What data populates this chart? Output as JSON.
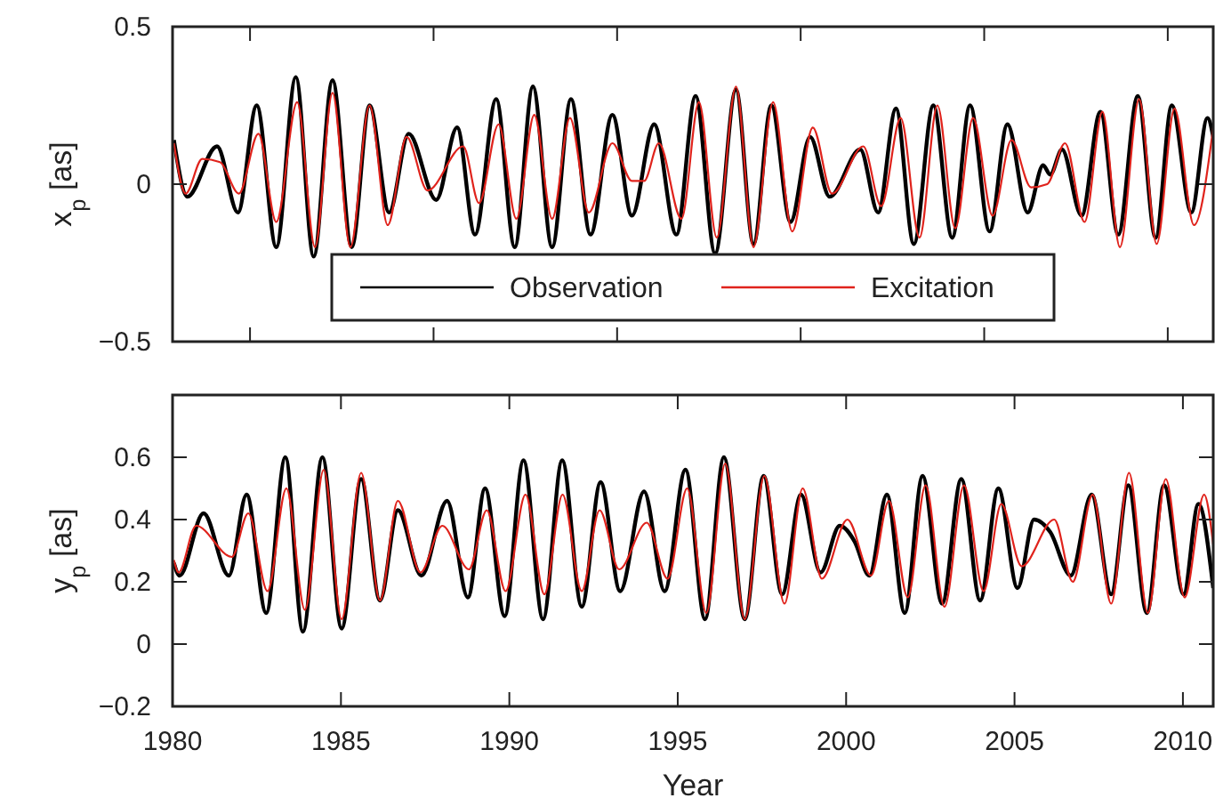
{
  "chart_data": [
    {
      "type": "line",
      "ylabel": "x$_{p}$ [as]",
      "xlim": [
        1980,
        2010.9
      ],
      "ylim": [
        -0.5,
        0.5
      ],
      "xticks": [
        {
          "value": 1982.3,
          "label": null
        },
        {
          "value": 1987.75,
          "label": null
        },
        {
          "value": 1993.2,
          "label": null
        },
        {
          "value": 1998.65,
          "label": null
        },
        {
          "value": 2004.1,
          "label": null
        },
        {
          "value": 2009.55,
          "label": null
        }
      ],
      "yticks": [
        {
          "value": -0.5,
          "label": "−0.5"
        },
        0,
        0.5
      ],
      "tick_labels": "y",
      "legend": "bottom",
      "series": [
        {
          "name": "Observation",
          "color": "#000000",
          "x": [
            1980.04,
            1980.44,
            1981.32,
            1981.94,
            1982.5,
            1983.08,
            1983.66,
            1984.19,
            1984.75,
            1985.32,
            1985.85,
            1986.43,
            1987.01,
            1987.83,
            1988.45,
            1988.98,
            1989.61,
            1990.16,
            1990.7,
            1991.27,
            1991.83,
            1992.41,
            1993.06,
            1993.64,
            1994.3,
            1994.96,
            1995.53,
            1996.11,
            1996.73,
            1997.25,
            1997.78,
            1998.35,
            1998.93,
            1999.51,
            2000.42,
            2000.95,
            2001.48,
            2002.01,
            2002.59,
            2003.15,
            2003.68,
            2004.26,
            2004.79,
            2005.39,
            2005.85,
            2006.06,
            2006.41,
            2006.99,
            2007.55,
            2008.08,
            2008.66,
            2009.19,
            2009.67,
            2010.25,
            2010.73,
            2010.9
          ],
          "values": [
            0.14,
            -0.04,
            0.12,
            -0.09,
            0.25,
            -0.2,
            0.34,
            -0.23,
            0.33,
            -0.2,
            0.25,
            -0.09,
            0.16,
            -0.05,
            0.18,
            -0.16,
            0.27,
            -0.2,
            0.31,
            -0.2,
            0.27,
            -0.16,
            0.22,
            -0.1,
            0.19,
            -0.16,
            0.28,
            -0.22,
            0.3,
            -0.19,
            0.25,
            -0.12,
            0.15,
            -0.04,
            0.11,
            -0.09,
            0.24,
            -0.19,
            0.25,
            -0.17,
            0.25,
            -0.15,
            0.19,
            -0.09,
            0.06,
            0.03,
            0.11,
            -0.1,
            0.23,
            -0.16,
            0.28,
            -0.17,
            0.25,
            -0.09,
            0.21,
            0.15
          ]
        },
        {
          "name": "Excitation",
          "color": "#e0231c",
          "x": [
            1980.04,
            1980.39,
            1980.88,
            1981.41,
            1981.97,
            1982.55,
            1983.08,
            1983.7,
            1984.23,
            1984.75,
            1985.28,
            1985.85,
            1986.39,
            1986.95,
            1987.57,
            1988.63,
            1989.1,
            1989.68,
            1990.21,
            1990.74,
            1991.27,
            1991.8,
            1992.36,
            1993.06,
            1993.64,
            1994.0,
            1994.44,
            1995.11,
            1995.63,
            1996.16,
            1996.73,
            1997.25,
            1997.83,
            1998.4,
            1999.01,
            1999.58,
            2000.51,
            2001.04,
            2001.62,
            2002.18,
            2002.71,
            2003.24,
            2003.77,
            2004.35,
            2004.91,
            2005.49,
            2005.97,
            2006.5,
            2007.08,
            2007.61,
            2008.13,
            2008.7,
            2009.22,
            2009.75,
            2010.33,
            2010.9
          ],
          "values": [
            0.13,
            -0.03,
            0.08,
            0.07,
            -0.03,
            0.16,
            -0.12,
            0.26,
            -0.2,
            0.29,
            -0.2,
            0.25,
            -0.13,
            0.15,
            -0.02,
            0.12,
            -0.06,
            0.19,
            -0.11,
            0.22,
            -0.11,
            0.21,
            -0.09,
            0.13,
            0.01,
            0.01,
            0.13,
            -0.11,
            0.26,
            -0.17,
            0.31,
            -0.2,
            0.26,
            -0.15,
            0.18,
            -0.03,
            0.12,
            -0.07,
            0.21,
            -0.17,
            0.25,
            -0.14,
            0.21,
            -0.1,
            0.14,
            -0.01,
            0,
            0.13,
            -0.12,
            0.23,
            -0.2,
            0.27,
            -0.19,
            0.24,
            -0.13,
            0.18
          ]
        }
      ]
    },
    {
      "type": "line",
      "xlabel": "Year",
      "ylabel": "y$_{p}$ [as]",
      "xlim": [
        1980,
        2010.9
      ],
      "ylim": [
        -0.2,
        0.8
      ],
      "xticks": [
        1980,
        1985,
        1990,
        1995,
        2000,
        2005,
        2010
      ],
      "yticks": [
        {
          "value": -0.2,
          "label": "−0.2"
        },
        0,
        0.2,
        0.4,
        0.6
      ],
      "series": [
        {
          "color": "#000000",
          "x": [
            1980.04,
            1980.21,
            1980.92,
            1981.67,
            1982.2,
            1982.78,
            1983.35,
            1983.87,
            1984.45,
            1985.02,
            1985.6,
            1986.16,
            1986.69,
            1987.39,
            1988.15,
            1988.77,
            1989.28,
            1989.86,
            1990.42,
            1991.0,
            1991.57,
            1992.15,
            1992.71,
            1993.29,
            1994.0,
            1994.61,
            1995.23,
            1995.81,
            1996.37,
            1996.99,
            1997.55,
            1998.1,
            1998.66,
            1999.24,
            1999.81,
            2000.25,
            2000.69,
            2001.21,
            2001.74,
            2002.27,
            2002.85,
            2003.42,
            2003.98,
            2004.52,
            2005.09,
            2005.58,
            2006.06,
            2006.67,
            2007.29,
            2007.87,
            2008.38,
            2008.93,
            2009.44,
            2010.02,
            2010.46,
            2010.9
          ],
          "values": [
            0.26,
            0.22,
            0.42,
            0.22,
            0.48,
            0.1,
            0.6,
            0.04,
            0.6,
            0.05,
            0.53,
            0.14,
            0.43,
            0.22,
            0.46,
            0.15,
            0.5,
            0.09,
            0.59,
            0.08,
            0.59,
            0.12,
            0.52,
            0.17,
            0.49,
            0.17,
            0.56,
            0.08,
            0.6,
            0.08,
            0.54,
            0.16,
            0.48,
            0.23,
            0.38,
            0.33,
            0.22,
            0.48,
            0.1,
            0.54,
            0.13,
            0.53,
            0.14,
            0.5,
            0.18,
            0.4,
            0.36,
            0.22,
            0.48,
            0.16,
            0.51,
            0.1,
            0.51,
            0.16,
            0.45,
            0.18
          ]
        },
        {
          "color": "#e0231c",
          "x": [
            1980.04,
            1980.18,
            1980.7,
            1981.76,
            1982.25,
            1982.82,
            1983.38,
            1983.93,
            1984.49,
            1985.02,
            1985.6,
            1986.16,
            1986.69,
            1987.36,
            1988.01,
            1988.8,
            1989.33,
            1989.89,
            1990.48,
            1991.04,
            1991.58,
            1992.15,
            1992.68,
            1993.26,
            1994.08,
            1994.7,
            1995.28,
            1995.85,
            1996.41,
            1996.99,
            1997.57,
            1998.17,
            1998.71,
            1999.28,
            2000.04,
            2000.74,
            2001.27,
            2001.83,
            2002.36,
            2002.92,
            2003.5,
            2004.08,
            2004.61,
            2005.21,
            2006.18,
            2006.73,
            2007.32,
            2007.87,
            2008.4,
            2008.96,
            2009.49,
            2010.05,
            2010.63,
            2010.9
          ],
          "values": [
            0.27,
            0.23,
            0.38,
            0.28,
            0.42,
            0.17,
            0.5,
            0.11,
            0.56,
            0.08,
            0.55,
            0.14,
            0.46,
            0.23,
            0.38,
            0.24,
            0.43,
            0.17,
            0.48,
            0.16,
            0.48,
            0.17,
            0.43,
            0.24,
            0.39,
            0.21,
            0.5,
            0.1,
            0.58,
            0.08,
            0.54,
            0.13,
            0.5,
            0.21,
            0.4,
            0.22,
            0.46,
            0.15,
            0.51,
            0.12,
            0.51,
            0.17,
            0.45,
            0.25,
            0.4,
            0.2,
            0.48,
            0.13,
            0.55,
            0.1,
            0.53,
            0.15,
            0.48,
            0.32
          ]
        }
      ]
    }
  ]
}
